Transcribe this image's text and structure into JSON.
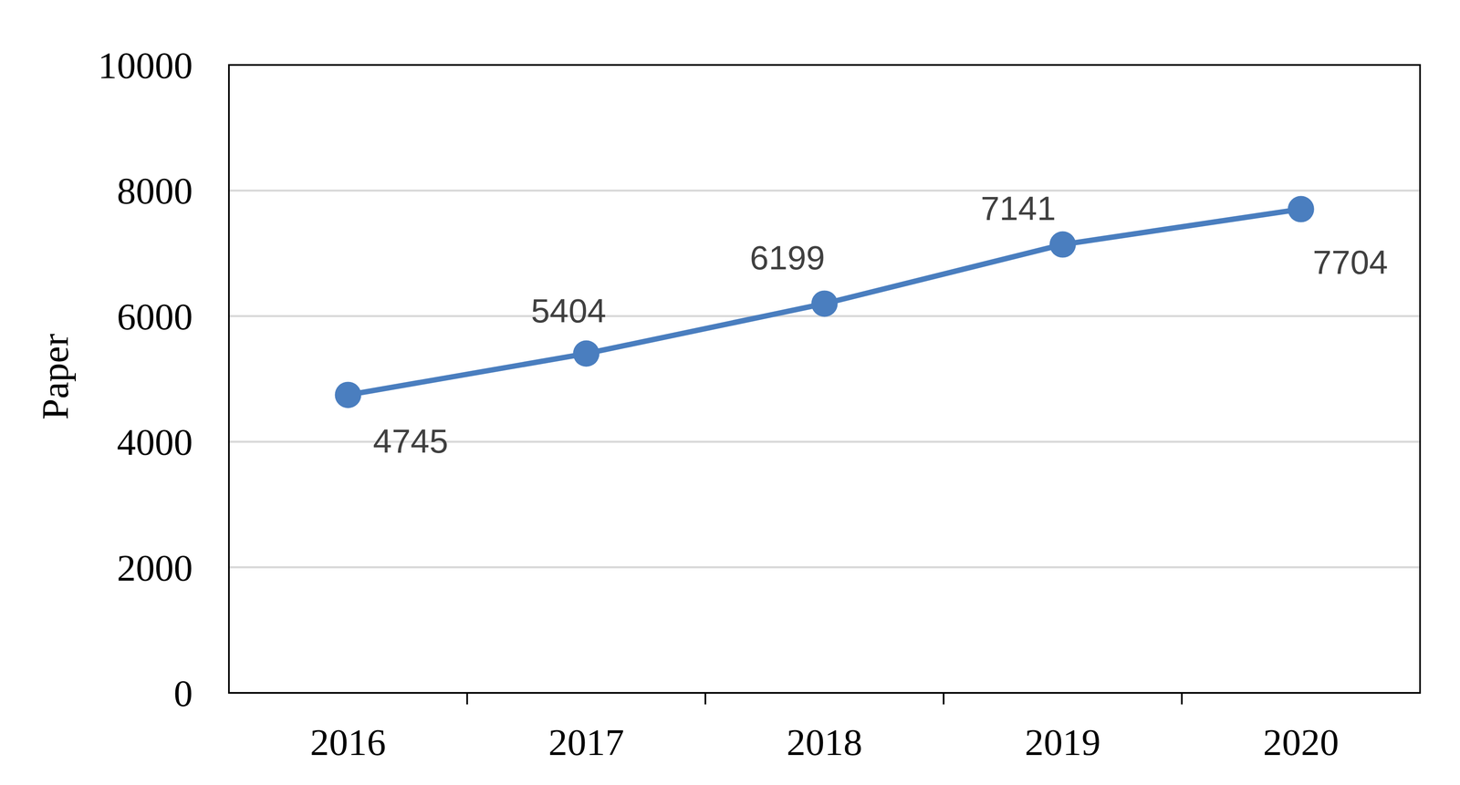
{
  "chart_data": {
    "type": "line",
    "y_label": "Paper",
    "categories": [
      "2016",
      "2017",
      "2018",
      "2019",
      "2020"
    ],
    "values": [
      4745,
      5404,
      6199,
      7141,
      7704
    ],
    "color": "#4a7ebf",
    "marker": "circle",
    "ylim": [
      0,
      10000
    ],
    "yticks": [
      0,
      2000,
      4000,
      6000,
      8000,
      10000
    ],
    "grid": true,
    "data_labels": true
  }
}
